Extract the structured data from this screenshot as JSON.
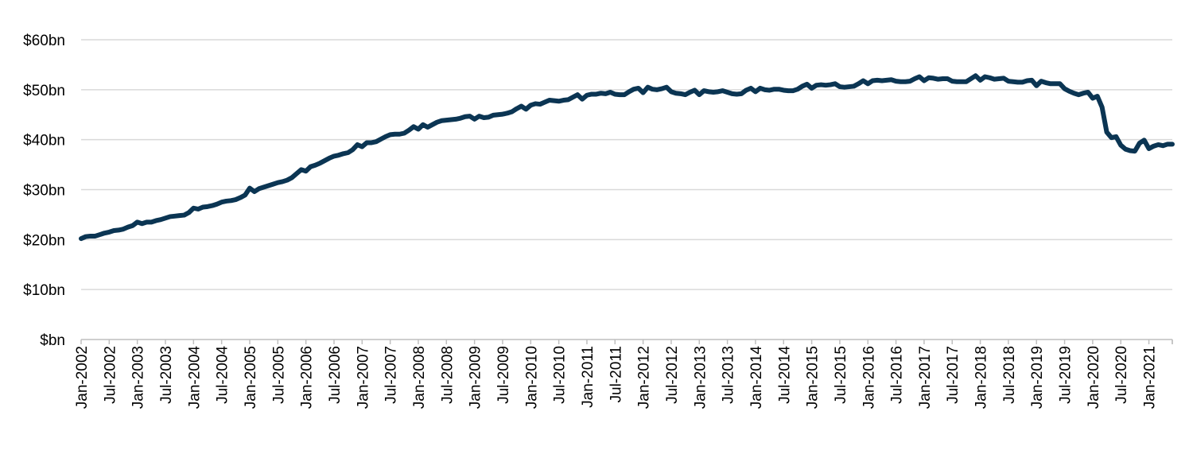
{
  "chart_data": {
    "type": "line",
    "title": "",
    "xlabel": "",
    "ylabel": "",
    "ylim": [
      0,
      60
    ],
    "y_ticks": [
      {
        "value": 0,
        "label": "$bn"
      },
      {
        "value": 10,
        "label": "$10bn"
      },
      {
        "value": 20,
        "label": "$20bn"
      },
      {
        "value": 30,
        "label": "$30bn"
      },
      {
        "value": 40,
        "label": "$40bn"
      },
      {
        "value": 50,
        "label": "$50bn"
      },
      {
        "value": 60,
        "label": "$60bn"
      }
    ],
    "x_tick_labels": [
      "Jan-2002",
      "Jul-2002",
      "Jan-2003",
      "Jul-2003",
      "Jan-2004",
      "Jul-2004",
      "Jan-2005",
      "Jul-2005",
      "Jan-2006",
      "Jul-2006",
      "Jan-2007",
      "Jul-2007",
      "Jan-2008",
      "Jul-2008",
      "Jan-2009",
      "Jul-2009",
      "Jan-2010",
      "Jul-2010",
      "Jan-2011",
      "Jul-2011",
      "Jan-2012",
      "Jul-2012",
      "Jan-2013",
      "Jul-2013",
      "Jan-2014",
      "Jul-2014",
      "Jan-2015",
      "Jul-2015",
      "Jan-2016",
      "Jul-2016",
      "Jan-2017",
      "Jul-2017",
      "Jan-2018",
      "Jul-2018",
      "Jan-2019",
      "Jul-2019",
      "Jan-2020",
      "Jul-2020",
      "Jan-2021"
    ],
    "x_start": "Jan-2002",
    "x_end": "Dec-2021",
    "grid": true,
    "line_color": "#0b3553",
    "series": [
      {
        "values": [
          20.2,
          20.6,
          20.7,
          20.7,
          21.0,
          21.3,
          21.5,
          21.8,
          21.9,
          22.1,
          22.5,
          22.8,
          23.5,
          23.2,
          23.5,
          23.5,
          23.8,
          24.0,
          24.3,
          24.6,
          24.7,
          24.8,
          24.9,
          25.4,
          26.3,
          26.1,
          26.5,
          26.6,
          26.8,
          27.1,
          27.5,
          27.7,
          27.8,
          28.0,
          28.4,
          28.9,
          30.3,
          29.6,
          30.2,
          30.5,
          30.8,
          31.1,
          31.4,
          31.6,
          31.9,
          32.4,
          33.2,
          34.0,
          33.7,
          34.6,
          34.9,
          35.3,
          35.8,
          36.3,
          36.7,
          36.9,
          37.2,
          37.4,
          38.0,
          39.0,
          38.6,
          39.4,
          39.4,
          39.6,
          40.1,
          40.6,
          41.0,
          41.1,
          41.1,
          41.3,
          41.9,
          42.6,
          42.1,
          43.0,
          42.5,
          43.0,
          43.5,
          43.8,
          43.9,
          44.0,
          44.1,
          44.3,
          44.6,
          44.7,
          44.1,
          44.7,
          44.4,
          44.5,
          44.9,
          45.0,
          45.1,
          45.3,
          45.6,
          46.2,
          46.7,
          46.1,
          46.9,
          47.2,
          47.1,
          47.5,
          47.9,
          47.8,
          47.7,
          47.9,
          48.0,
          48.5,
          49.0,
          48.1,
          48.9,
          49.1,
          49.1,
          49.3,
          49.2,
          49.5,
          49.1,
          49.0,
          49.0,
          49.6,
          50.1,
          50.3,
          49.4,
          50.5,
          50.1,
          50.0,
          50.2,
          50.5,
          49.6,
          49.3,
          49.2,
          49.0,
          49.5,
          49.9,
          49.0,
          49.8,
          49.6,
          49.5,
          49.6,
          49.8,
          49.5,
          49.2,
          49.1,
          49.2,
          49.9,
          50.3,
          49.6,
          50.3,
          50.0,
          49.9,
          50.1,
          50.1,
          49.9,
          49.8,
          49.8,
          50.1,
          50.7,
          51.1,
          50.3,
          50.9,
          51.0,
          50.9,
          51.0,
          51.2,
          50.6,
          50.5,
          50.6,
          50.7,
          51.2,
          51.8,
          51.2,
          51.8,
          51.9,
          51.8,
          51.9,
          52.0,
          51.7,
          51.6,
          51.6,
          51.7,
          52.2,
          52.6,
          51.8,
          52.4,
          52.3,
          52.1,
          52.2,
          52.2,
          51.7,
          51.6,
          51.6,
          51.6,
          52.2,
          52.8,
          51.9,
          52.6,
          52.4,
          52.1,
          52.2,
          52.3,
          51.7,
          51.6,
          51.5,
          51.5,
          51.8,
          51.9,
          50.8,
          51.7,
          51.4,
          51.2,
          51.2,
          51.2,
          50.2,
          49.7,
          49.3,
          49.0,
          49.3,
          49.5,
          48.3,
          48.7,
          46.5,
          41.5,
          40.4,
          40.6,
          38.9,
          38.1,
          37.8,
          37.7,
          39.3,
          39.9,
          38.2,
          38.7,
          39.0,
          38.8,
          39.1,
          39.1
        ]
      }
    ]
  }
}
